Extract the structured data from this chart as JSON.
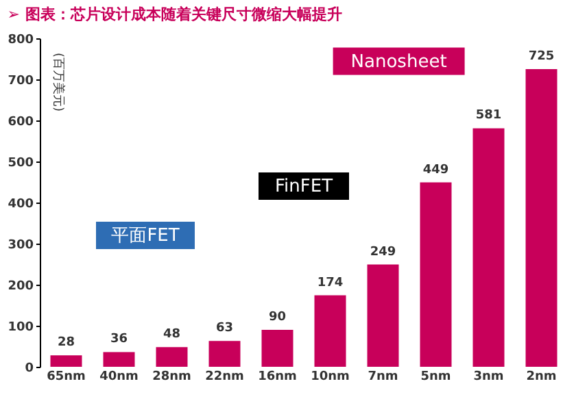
{
  "chart_data": {
    "type": "bar",
    "title": "➢ 图表：芯片设计成本随着关键尺寸微缩大幅提升",
    "ylabel": "(百万美元)",
    "categories": [
      "65nm",
      "40nm",
      "28nm",
      "22nm",
      "16nm",
      "10nm",
      "7nm",
      "5nm",
      "3nm",
      "2nm"
    ],
    "values": [
      28,
      36,
      48,
      63,
      90,
      174,
      249,
      449,
      581,
      725
    ],
    "color": "#c8005a",
    "ylim": [
      0,
      800
    ],
    "yticks": [
      0,
      100,
      200,
      300,
      400,
      500,
      600,
      700,
      800
    ],
    "grid": false,
    "data_labels": true,
    "annotations": [
      "平面FET",
      "FinFET",
      "Nanosheet"
    ]
  }
}
